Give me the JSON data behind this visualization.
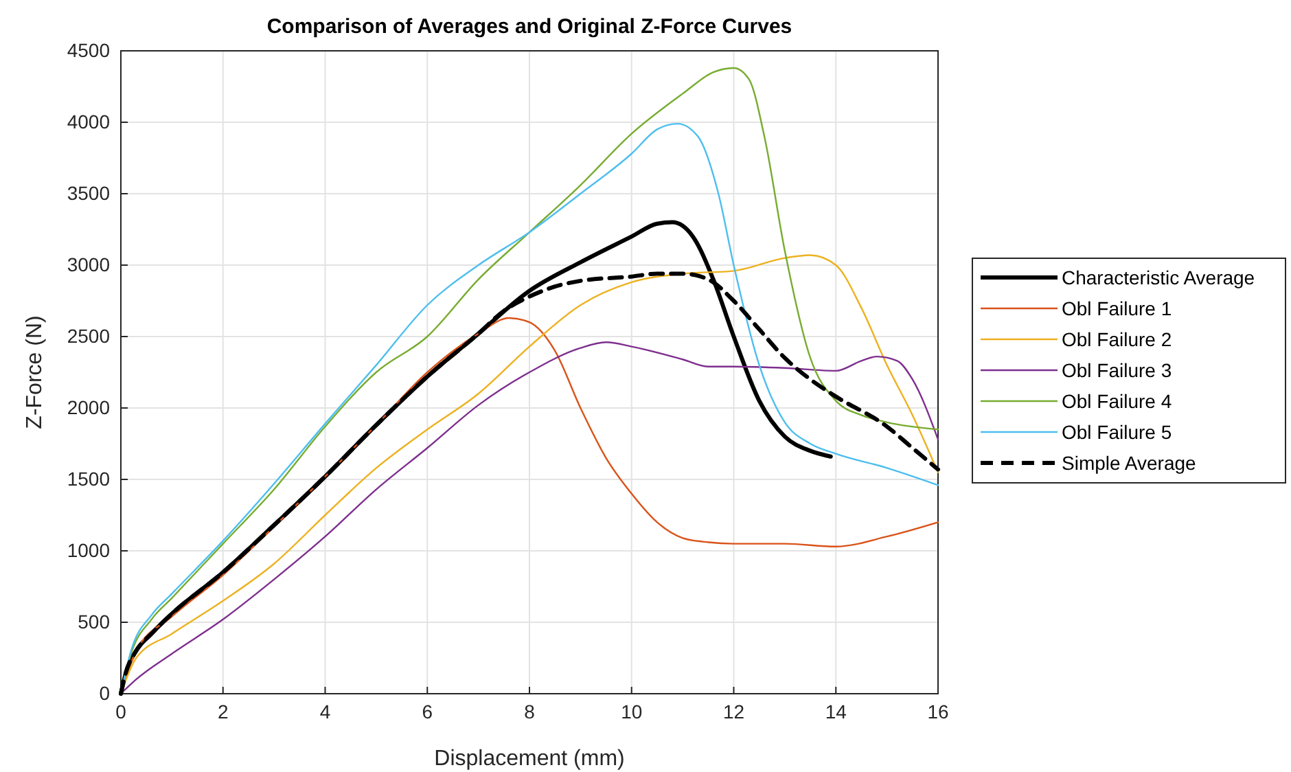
{
  "chart_data": {
    "type": "line",
    "title": "Comparison of Averages and Original Z-Force Curves",
    "xlabel": "Displacement (mm)",
    "ylabel": "Z-Force (N)",
    "xlim": [
      0,
      16
    ],
    "ylim": [
      0,
      4500
    ],
    "xticks": [
      0,
      2,
      4,
      6,
      8,
      10,
      12,
      14,
      16
    ],
    "yticks": [
      0,
      500,
      1000,
      1500,
      2000,
      2500,
      3000,
      3500,
      4000,
      4500
    ],
    "grid": true,
    "legend": "right",
    "marker": "none",
    "series": [
      {
        "name": "Characteristic Average",
        "color": "#000000",
        "line_style": "solid",
        "x": [
          0,
          0.1,
          0.3,
          0.6,
          1,
          2,
          3,
          4,
          5,
          6,
          7,
          8,
          9,
          10,
          10.5,
          10.8,
          11.2,
          11.6,
          12,
          12.5,
          13,
          13.5,
          13.9
        ],
        "values": [
          0,
          150,
          300,
          420,
          560,
          850,
          1180,
          1520,
          1880,
          2220,
          2520,
          2820,
          3020,
          3200,
          3290,
          3300,
          3200,
          2900,
          2500,
          2050,
          1800,
          1700,
          1660
        ]
      },
      {
        "name": "Obl Failure 1",
        "color": "#d95319",
        "x": [
          0,
          0.3,
          1,
          2,
          3,
          4,
          5,
          6,
          7,
          7.6,
          8,
          8.5,
          9,
          9.5,
          10,
          10.5,
          11,
          11.5,
          12,
          13,
          14,
          15,
          16
        ],
        "values": [
          0,
          300,
          540,
          830,
          1170,
          1520,
          1880,
          2250,
          2520,
          2630,
          2600,
          2400,
          2000,
          1650,
          1400,
          1200,
          1090,
          1060,
          1050,
          1050,
          1030,
          1100,
          1200
        ]
      },
      {
        "name": "Obl Failure 2",
        "color": "#edb120",
        "x": [
          0,
          0.3,
          1,
          2,
          3,
          4,
          5,
          6,
          7,
          8,
          9,
          10,
          11,
          12,
          13,
          13.5,
          14,
          14.5,
          15,
          15.5,
          16
        ],
        "values": [
          0,
          250,
          420,
          650,
          910,
          1250,
          1580,
          1850,
          2100,
          2430,
          2720,
          2880,
          2940,
          2960,
          3050,
          3070,
          3000,
          2700,
          2300,
          1950,
          1550
        ]
      },
      {
        "name": "Obl Failure 3",
        "color": "#7e2f8e",
        "x": [
          0,
          0.3,
          1,
          2,
          3,
          4,
          5,
          6,
          7,
          8,
          9,
          9.5,
          10,
          11,
          11.5,
          12,
          13,
          14,
          14.5,
          14.8,
          15.2,
          15.5,
          16
        ],
        "values": [
          0,
          100,
          280,
          520,
          800,
          1100,
          1430,
          1720,
          2020,
          2250,
          2420,
          2460,
          2430,
          2340,
          2290,
          2290,
          2280,
          2260,
          2330,
          2360,
          2330,
          2200,
          1780
        ]
      },
      {
        "name": "Obl Failure 4",
        "color": "#77ac30",
        "x": [
          0,
          0.2,
          0.6,
          1,
          2,
          3,
          4,
          5,
          6,
          7,
          8,
          9,
          10,
          11,
          11.6,
          12,
          12.3,
          12.6,
          13,
          13.5,
          14,
          14.5,
          15,
          16
        ],
        "values": [
          0,
          280,
          520,
          670,
          1050,
          1430,
          1870,
          2250,
          2500,
          2900,
          3230,
          3560,
          3920,
          4200,
          4350,
          4380,
          4300,
          3900,
          3100,
          2350,
          2050,
          1950,
          1900,
          1850
        ]
      },
      {
        "name": "Obl Failure 5",
        "color": "#4dbeee",
        "x": [
          0,
          0.2,
          0.6,
          1,
          2,
          3,
          4,
          5,
          6,
          7,
          8,
          9,
          10,
          10.5,
          10.9,
          11.3,
          11.7,
          12,
          12.5,
          13,
          13.5,
          14,
          15,
          16
        ],
        "values": [
          0,
          300,
          550,
          700,
          1070,
          1470,
          1890,
          2300,
          2720,
          3000,
          3230,
          3500,
          3780,
          3950,
          3990,
          3900,
          3500,
          3000,
          2300,
          1900,
          1750,
          1680,
          1580,
          1460
        ]
      },
      {
        "name": "Simple Average",
        "color": "#000000",
        "line_style": "dashed",
        "x": [
          0,
          0.1,
          0.3,
          0.6,
          1,
          2,
          3,
          4,
          5,
          6,
          7,
          7.5,
          8,
          8.5,
          9,
          10,
          10.5,
          11,
          11.5,
          12,
          12.5,
          13,
          13.5,
          14,
          15,
          15.5,
          16
        ],
        "values": [
          0,
          150,
          300,
          420,
          560,
          850,
          1180,
          1520,
          1880,
          2220,
          2520,
          2680,
          2780,
          2850,
          2890,
          2920,
          2940,
          2940,
          2900,
          2750,
          2550,
          2350,
          2200,
          2080,
          1870,
          1720,
          1570
        ]
      }
    ]
  }
}
